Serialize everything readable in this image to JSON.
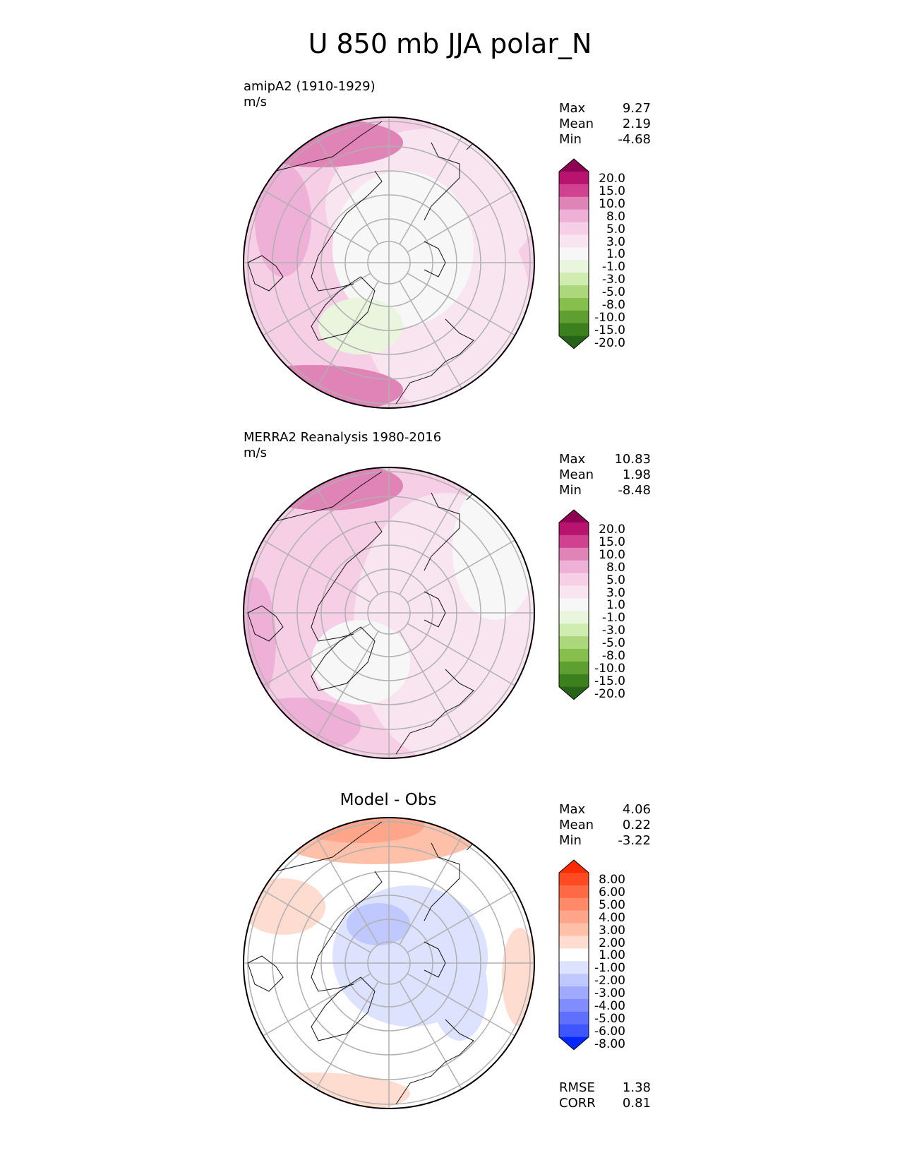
{
  "title": "U 850 mb JJA polar_N",
  "panels": [
    {
      "title_line1": "amipA2 (1910-1929)",
      "title_line2": "m/s",
      "stats": {
        "max_label": "Max",
        "max": "9.27",
        "mean_label": "Mean",
        "mean": "2.19",
        "min_label": "Min",
        "min": "-4.68"
      },
      "colorbar": {
        "labels": [
          "20.0",
          "15.0",
          "10.0",
          "8.0",
          "5.0",
          "3.0",
          "1.0",
          "-1.0",
          "-3.0",
          "-5.0",
          "-8.0",
          "-10.0",
          "-15.0",
          "-20.0"
        ],
        "colors": [
          "#8e0152",
          "#b8136f",
          "#d0418f",
          "#e083b6",
          "#eeb0d6",
          "#f6cfe6",
          "#f9e5f0",
          "#f7f7f7",
          "#e9f5dc",
          "#d1ecb0",
          "#acd77b",
          "#86bf4c",
          "#5f9e30",
          "#3c7f1d",
          "#276419"
        ]
      }
    },
    {
      "title_line1": "MERRA2 Reanalysis 1980-2016",
      "title_line2": "m/s",
      "stats": {
        "max_label": "Max",
        "max": "10.83",
        "mean_label": "Mean",
        "mean": "1.98",
        "min_label": "Min",
        "min": "-8.48"
      },
      "colorbar": {
        "labels": [
          "20.0",
          "15.0",
          "10.0",
          "8.0",
          "5.0",
          "3.0",
          "1.0",
          "-1.0",
          "-3.0",
          "-5.0",
          "-8.0",
          "-10.0",
          "-15.0",
          "-20.0"
        ],
        "colors": [
          "#8e0152",
          "#b8136f",
          "#d0418f",
          "#e083b6",
          "#eeb0d6",
          "#f6cfe6",
          "#f9e5f0",
          "#f7f7f7",
          "#e9f5dc",
          "#d1ecb0",
          "#acd77b",
          "#86bf4c",
          "#5f9e30",
          "#3c7f1d",
          "#276419"
        ]
      }
    },
    {
      "center_title": "Model - Obs",
      "stats": {
        "max_label": "Max",
        "max": "4.06",
        "mean_label": "Mean",
        "mean": "0.22",
        "min_label": "Min",
        "min": "-3.22"
      },
      "colorbar": {
        "labels": [
          "8.00",
          "6.00",
          "5.00",
          "4.00",
          "3.00",
          "2.00",
          "1.00",
          "-1.00",
          "-2.00",
          "-3.00",
          "-4.00",
          "-5.00",
          "-6.00",
          "-8.00"
        ],
        "colors": [
          "#ff2a00",
          "#ff4a22",
          "#ff6a45",
          "#ff8a6a",
          "#ffa58a",
          "#ffc0aa",
          "#ffdcd0",
          "#ffffff",
          "#dde2ff",
          "#bfc8ff",
          "#9faaff",
          "#7f8dff",
          "#5f70ff",
          "#3f55ff",
          "#0027ff"
        ]
      },
      "metrics": {
        "rmse_label": "RMSE",
        "rmse": "1.38",
        "corr_label": "CORR",
        "corr": "0.81"
      }
    }
  ],
  "colors": {
    "map_border": "#000000",
    "grid": "#b0b0b0",
    "coast": "#111111"
  }
}
